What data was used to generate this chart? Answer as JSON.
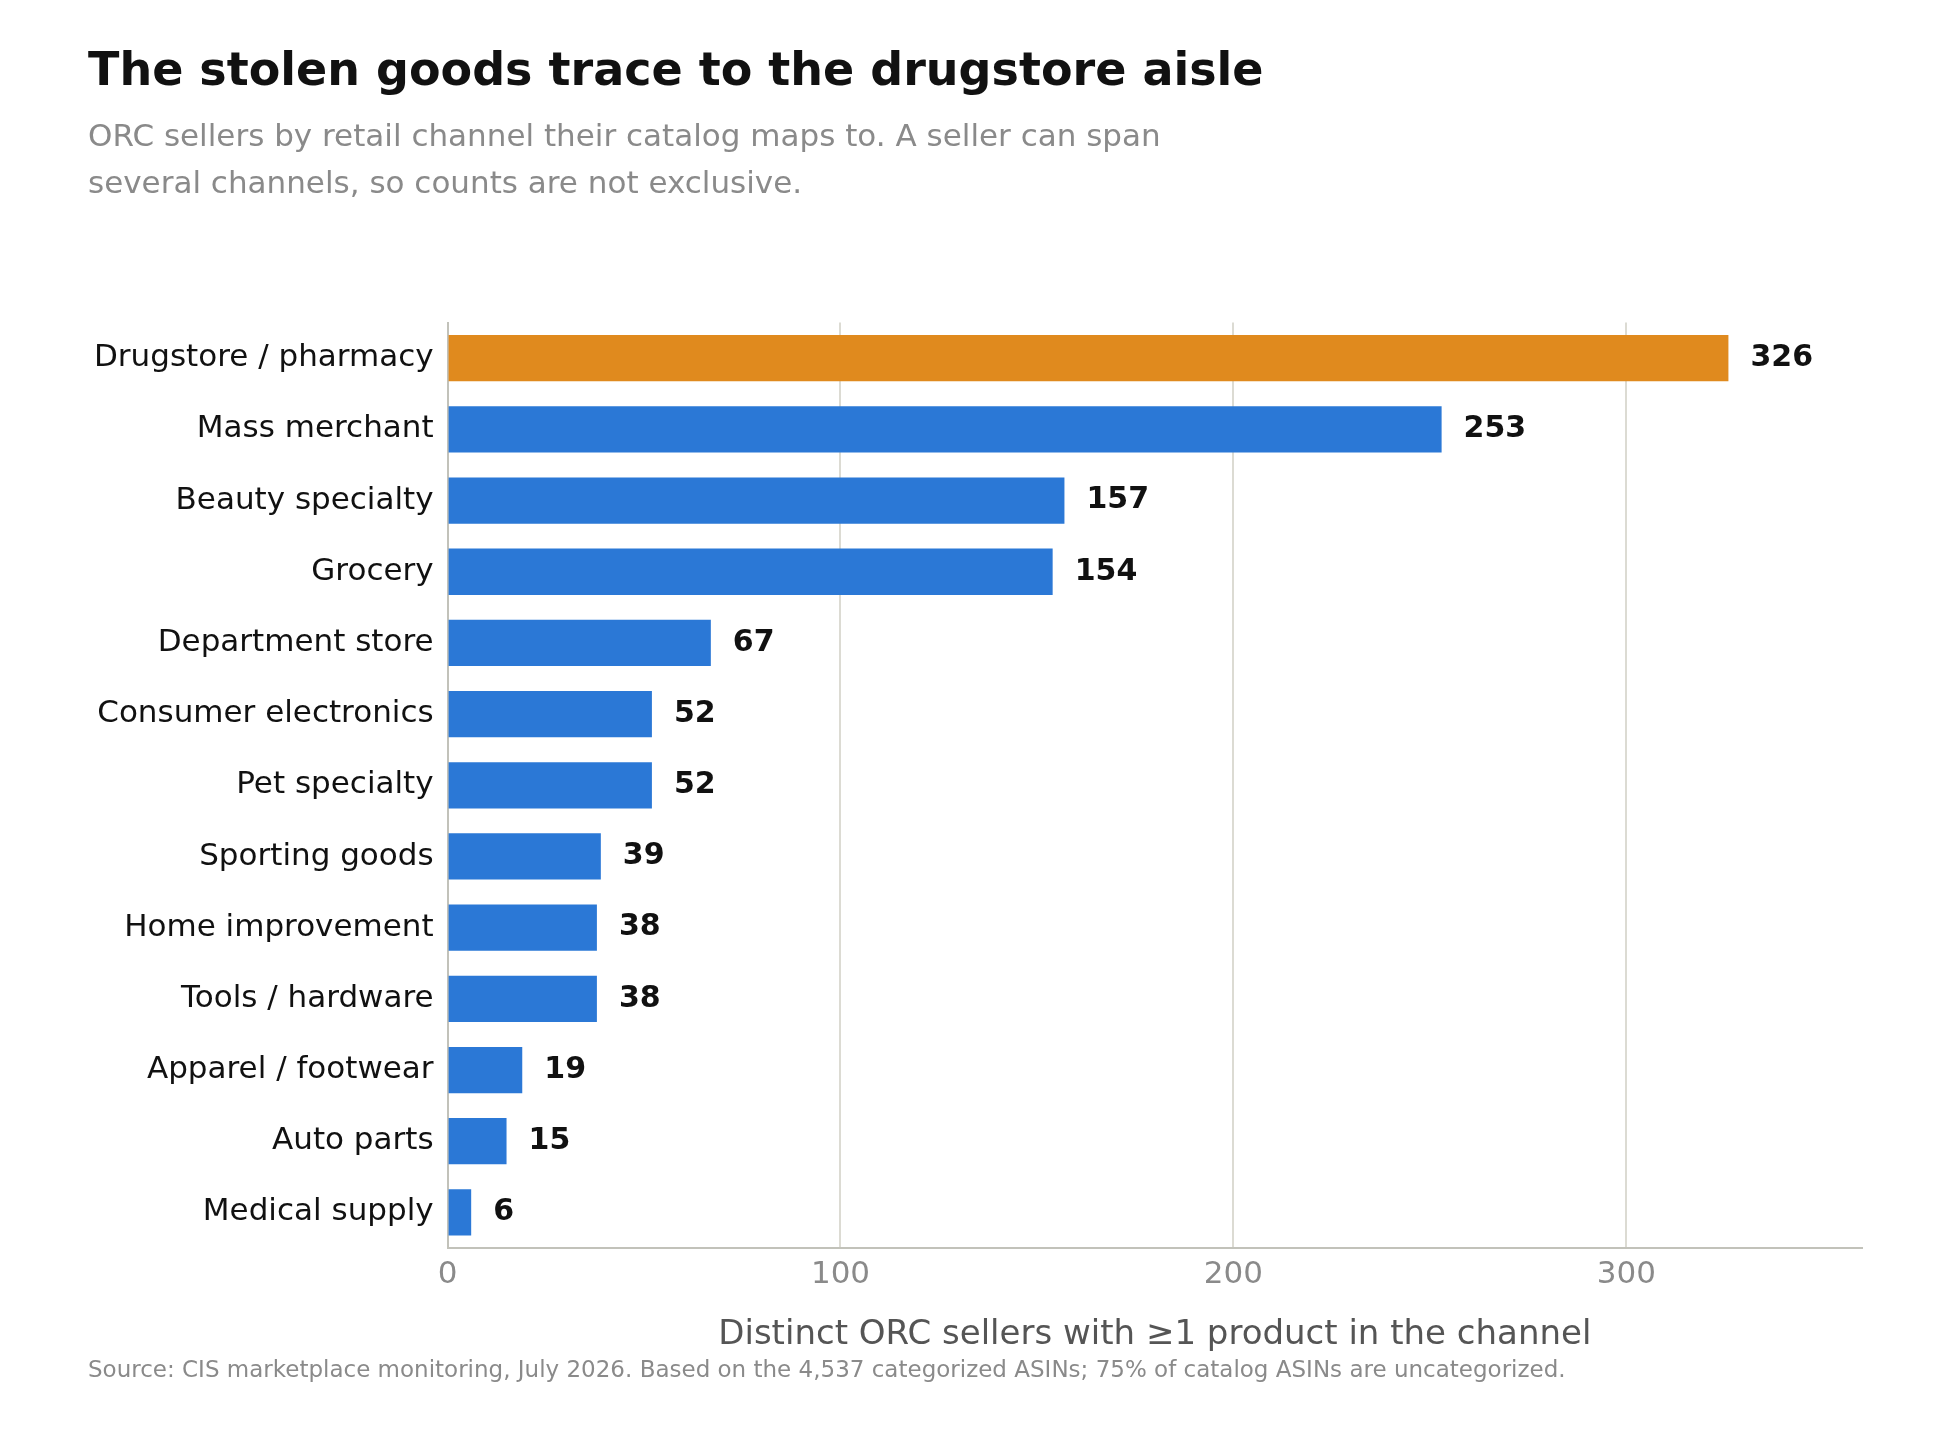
{
  "chart_data": {
    "type": "bar",
    "orientation": "horizontal",
    "title": "The stolen goods trace to the drugstore aisle",
    "subtitle": "ORC sellers by retail channel their catalog maps to. A seller can span several channels, so counts are not exclusive.",
    "xlabel": "Distinct ORC sellers with ≥1 product in the channel",
    "categories": [
      "Drugstore / pharmacy",
      "Mass merchant",
      "Beauty specialty",
      "Grocery",
      "Department store",
      "Consumer electronics",
      "Pet specialty",
      "Sporting goods",
      "Home improvement",
      "Tools / hardware",
      "Apparel / footwear",
      "Auto parts",
      "Medical supply"
    ],
    "values": [
      326,
      253,
      157,
      154,
      67,
      52,
      52,
      39,
      38,
      38,
      19,
      15,
      6
    ],
    "colors": [
      "#e08a1e",
      "#2b78d6",
      "#2b78d6",
      "#2b78d6",
      "#2b78d6",
      "#2b78d6",
      "#2b78d6",
      "#2b78d6",
      "#2b78d6",
      "#2b78d6",
      "#2b78d6",
      "#2b78d6",
      "#2b78d6"
    ],
    "xlim": [
      0,
      360
    ],
    "xticks": [
      0,
      100,
      200,
      300
    ],
    "grid": "x",
    "legend": false,
    "data_labels": true,
    "annotations": [
      "Source: CIS marketplace monitoring, July 2026.  Based on the 4,537 categorized ASINs; 75% of catalog ASINs are uncategorized."
    ]
  }
}
